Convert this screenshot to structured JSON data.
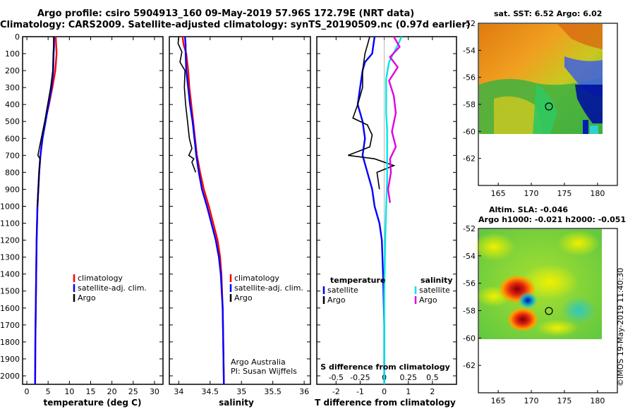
{
  "header": {
    "title_line1": "Argo profile: csiro 5904913_160 09-May-2019 57.96S 172.79E (NRT data)",
    "title_line2": "Climatology: CARS2009. Satellite-adjusted climatology: synTS_20190509.nc (0.97d earlier)"
  },
  "footer": {
    "credit_line1": "Argo Australia",
    "credit_line2": "PI: Susan Wijffels",
    "stamp": "©IMOS 19-May-2019 11:40:30"
  },
  "colors": {
    "climatology": "#ff0000",
    "satellite": "#0000ff",
    "argo": "#000000",
    "satellite_salinity": "#00e5e5",
    "argo_salinity": "#e000e0"
  },
  "chart_data": [
    {
      "type": "line",
      "xlabel": "temperature (deg C)",
      "ylabel": "",
      "xlim": [
        -1,
        32
      ],
      "ylim": [
        2050,
        0
      ],
      "xticks": [
        0,
        5,
        10,
        15,
        20,
        25,
        30
      ],
      "yticks": [
        0,
        100,
        200,
        300,
        400,
        500,
        600,
        700,
        800,
        900,
        1000,
        1100,
        1200,
        1300,
        1400,
        1500,
        1600,
        1700,
        1800,
        1900,
        2000
      ],
      "legend": {
        "position": "lower-right",
        "entries": [
          "climatology",
          "satellite-adj. clim.",
          "Argo"
        ]
      },
      "series": [
        {
          "name": "climatology",
          "color": "#ff0000",
          "x": [
            6.8,
            6.9,
            7.0,
            6.7,
            6.0,
            5.2,
            4.3,
            3.6,
            3.2,
            2.9,
            2.7,
            2.5,
            2.3,
            2.2,
            2.1,
            2.0,
            1.95
          ],
          "y": [
            0,
            50,
            100,
            200,
            300,
            400,
            500,
            600,
            700,
            800,
            900,
            1000,
            1200,
            1400,
            1600,
            1800,
            2050
          ]
        },
        {
          "name": "satellite-adj. clim.",
          "color": "#0000ff",
          "x": [
            6.4,
            6.4,
            6.3,
            6.2,
            5.8,
            5.1,
            4.4,
            3.7,
            3.2,
            2.9,
            2.7,
            2.5,
            2.3,
            2.2,
            2.1,
            2.0,
            1.95
          ],
          "y": [
            0,
            50,
            100,
            200,
            300,
            400,
            500,
            600,
            700,
            800,
            900,
            1000,
            1200,
            1400,
            1600,
            1800,
            2050
          ]
        },
        {
          "name": "Argo",
          "color": "#000000",
          "x": [
            6.3,
            6.3,
            6.2,
            6.1,
            5.6,
            4.9,
            4.2,
            3.4,
            2.6,
            3.1,
            2.9,
            2.7,
            2.5
          ],
          "y": [
            0,
            50,
            100,
            200,
            300,
            400,
            500,
            600,
            700,
            720,
            800,
            900,
            1000
          ]
        }
      ]
    },
    {
      "type": "line",
      "xlabel": "salinity",
      "ylabel": "",
      "xlim": [
        33.85,
        36.1
      ],
      "ylim": [
        2050,
        0
      ],
      "xticks": [
        34,
        34.5,
        35,
        35.5,
        36
      ],
      "legend": {
        "position": "lower-right",
        "entries": [
          "climatology",
          "satellite-adj. clim.",
          "Argo"
        ]
      },
      "series": [
        {
          "name": "climatology",
          "color": "#ff0000",
          "x": [
            34.06,
            34.08,
            34.12,
            34.15,
            34.17,
            34.2,
            34.23,
            34.26,
            34.29,
            34.34,
            34.4,
            34.48,
            34.55,
            34.62,
            34.66,
            34.68,
            34.7,
            34.71,
            34.72
          ],
          "y": [
            0,
            50,
            100,
            200,
            300,
            400,
            500,
            600,
            700,
            800,
            900,
            1000,
            1100,
            1200,
            1300,
            1400,
            1600,
            1800,
            2050
          ]
        },
        {
          "name": "satellite-adj. clim.",
          "color": "#0000ff",
          "x": [
            34.1,
            34.11,
            34.11,
            34.12,
            34.15,
            34.18,
            34.22,
            34.25,
            34.28,
            34.32,
            34.37,
            34.45,
            34.52,
            34.59,
            34.64,
            34.67,
            34.7,
            34.71,
            34.72
          ],
          "y": [
            0,
            50,
            100,
            200,
            300,
            400,
            500,
            600,
            700,
            800,
            900,
            1000,
            1100,
            1200,
            1300,
            1400,
            1600,
            1800,
            2050
          ]
        },
        {
          "name": "Argo",
          "color": "#000000",
          "x": [
            34.0,
            33.99,
            34.05,
            34.02,
            34.1,
            34.09,
            34.11,
            34.14,
            34.17,
            34.21,
            34.16,
            34.24,
            34.21,
            34.27
          ],
          "y": [
            0,
            40,
            90,
            150,
            200,
            300,
            400,
            500,
            600,
            660,
            700,
            720,
            740,
            800
          ]
        }
      ]
    },
    {
      "type": "line",
      "xlabel": "T difference from climatology",
      "top_axis_label": "S difference from climatology",
      "xlim": [
        -2.8,
        3.0
      ],
      "ylim": [
        2050,
        0
      ],
      "xticks": [
        -2,
        -1,
        0,
        1,
        2
      ],
      "top_xticks": [
        -0.5,
        -0.25,
        0,
        0.25,
        0.5
      ],
      "legend": {
        "position": "lower-center",
        "temperature_title": "temperature",
        "salinity_title": "salinity",
        "entries": [
          "satellite",
          "Argo",
          "satellite",
          "Argo"
        ]
      },
      "series": [
        {
          "name": "satellite",
          "group": "temperature",
          "color": "#0000ff",
          "x": [
            -0.4,
            -0.5,
            -0.8,
            -0.9,
            -1.0,
            -1.1,
            -0.9,
            -0.8,
            -0.9,
            -0.7,
            -0.5,
            -0.4,
            -0.2,
            -0.1,
            -0.05,
            0.0,
            0.0
          ],
          "y": [
            0,
            100,
            150,
            200,
            300,
            400,
            500,
            600,
            700,
            800,
            900,
            1000,
            1100,
            1200,
            1400,
            1700,
            2050
          ]
        },
        {
          "name": "Argo",
          "group": "temperature",
          "color": "#000000",
          "x": [
            -0.6,
            -0.8,
            -0.9,
            -0.9,
            -1.1,
            -1.3,
            -0.7,
            -0.5,
            -0.6,
            -1.5,
            -0.4,
            0.4,
            -0.3,
            -0.2
          ],
          "y": [
            0,
            100,
            200,
            300,
            400,
            480,
            520,
            580,
            650,
            700,
            720,
            760,
            800,
            900
          ]
        },
        {
          "name": "satellite",
          "group": "salinity",
          "color": "#00e5e5",
          "x": [
            0.18,
            0.14,
            0.05,
            0.02,
            0.02,
            0.02,
            0.03,
            0.03,
            0.03,
            0.03,
            0.02,
            0.01,
            0.0,
            0.0,
            0.0
          ],
          "y": [
            0,
            50,
            150,
            250,
            350,
            450,
            550,
            650,
            750,
            850,
            1000,
            1200,
            1500,
            1800,
            2050
          ]
        },
        {
          "name": "Argo",
          "group": "salinity",
          "color": "#e000e0",
          "x": [
            0.1,
            0.16,
            0.06,
            0.14,
            0.05,
            0.1,
            0.12,
            0.08,
            0.12,
            0.06,
            0.07,
            0.04,
            0.06
          ],
          "y": [
            0,
            60,
            120,
            180,
            260,
            350,
            450,
            560,
            650,
            720,
            800,
            900,
            980
          ]
        }
      ]
    },
    {
      "type": "heatmap",
      "title": "sat. SST: 6.52 Argo: 6.02",
      "xlim": [
        162,
        183
      ],
      "ylim": [
        -64,
        -52
      ],
      "xticks": [
        165,
        170,
        175,
        180
      ],
      "yticks": [
        -52,
        -54,
        -56,
        -58,
        -60,
        -62
      ],
      "float_position": {
        "lon": 172.79,
        "lat": -57.96
      }
    },
    {
      "type": "heatmap",
      "title_line1": "Altim. SLA: -0.046",
      "title_line2": "Argo h1000: -0.021 h2000: -0.051",
      "xlim": [
        162,
        183
      ],
      "ylim": [
        -64,
        -52
      ],
      "xticks": [
        165,
        170,
        175,
        180
      ],
      "yticks": [
        -52,
        -54,
        -56,
        -58,
        -60,
        -62
      ],
      "float_position": {
        "lon": 172.79,
        "lat": -57.96
      }
    }
  ]
}
